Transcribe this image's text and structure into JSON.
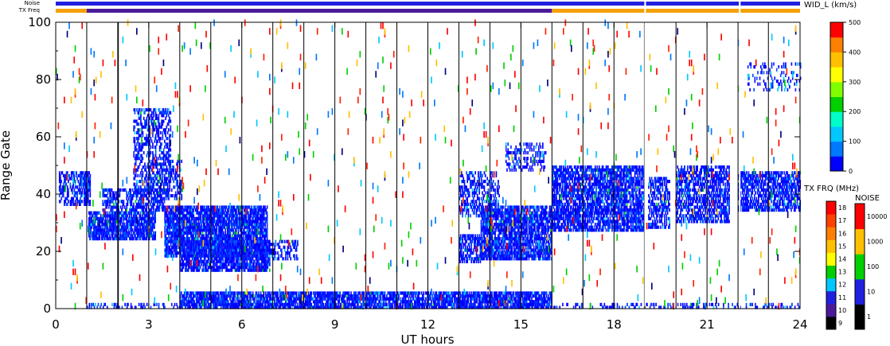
{
  "chart_data": {
    "type": "heatmap",
    "xlabel": "UT hours",
    "ylabel": "Range Gate",
    "xlim": [
      0,
      24
    ],
    "ylim": [
      0,
      100
    ],
    "x_ticks": [
      "0",
      "3",
      "6",
      "9",
      "12",
      "15",
      "18",
      "21",
      "24"
    ],
    "y_ticks": [
      "0",
      "20",
      "40",
      "60",
      "80",
      "100"
    ],
    "x_tick_values": [
      0,
      3,
      6,
      9,
      12,
      15,
      18,
      21,
      24
    ],
    "y_tick_values": [
      0,
      20,
      40,
      60,
      80,
      100
    ],
    "scan_boundaries_hours": [
      1.0,
      2.0,
      2.02,
      3.0,
      4.0,
      5.0,
      6.0,
      7.0,
      8.0,
      9.0,
      10.0,
      11.0,
      12.0,
      13.0,
      14.0,
      15.0,
      16.0,
      17.0,
      18.0,
      18.98,
      20.0,
      21.0,
      22.0,
      22.98
    ],
    "data_gaps_hours": [
      [
        18.98,
        19.03
      ],
      [
        22.03,
        22.08
      ]
    ],
    "top_bars": {
      "noise_label": "Noise",
      "txfreq_label": "TX Freq",
      "noise_segments": [
        [
          0,
          18.98
        ],
        [
          19.03,
          22.03
        ],
        [
          22.08,
          24
        ]
      ],
      "txfreq_segments": [
        {
          "from": 0,
          "to": 1.0,
          "color": "#f5a000"
        },
        {
          "from": 1.0,
          "to": 16.0,
          "color": "#4a1a9a"
        },
        {
          "from": 16.0,
          "to": 18.98,
          "color": "#f5a000"
        },
        {
          "from": 19.03,
          "to": 22.03,
          "color": "#f5a000"
        },
        {
          "from": 22.08,
          "to": 24,
          "color": "#f5a000"
        }
      ]
    },
    "echo_regions": [
      {
        "t": [
          0.1,
          1.0
        ],
        "g": [
          36,
          48
        ],
        "density": 0.55
      },
      {
        "t": [
          0.9,
          1.1
        ],
        "g": [
          36,
          48
        ],
        "density": 0.8
      },
      {
        "t": [
          1.05,
          3.2
        ],
        "g": [
          24,
          34
        ],
        "density": 0.85
      },
      {
        "t": [
          1.5,
          3.5
        ],
        "g": [
          34,
          42
        ],
        "density": 0.6
      },
      {
        "t": [
          2.5,
          3.7
        ],
        "g": [
          40,
          70
        ],
        "density": 0.45
      },
      {
        "t": [
          3.4,
          4.05
        ],
        "g": [
          38,
          52
        ],
        "density": 0.45
      },
      {
        "t": [
          3.5,
          6.8
        ],
        "g": [
          18,
          36
        ],
        "density": 0.85
      },
      {
        "t": [
          4.0,
          6.9
        ],
        "g": [
          13,
          24
        ],
        "density": 0.8
      },
      {
        "t": [
          6.5,
          7.8
        ],
        "g": [
          17,
          24
        ],
        "density": 0.4
      },
      {
        "t": [
          13.0,
          13.7
        ],
        "g": [
          16,
          26
        ],
        "density": 0.7
      },
      {
        "t": [
          13.0,
          14.3
        ],
        "g": [
          32,
          48
        ],
        "density": 0.45
      },
      {
        "t": [
          13.7,
          16.0
        ],
        "g": [
          17,
          36
        ],
        "density": 0.8
      },
      {
        "t": [
          14.5,
          15.8
        ],
        "g": [
          48,
          58
        ],
        "density": 0.35
      },
      {
        "t": [
          16.0,
          18.95
        ],
        "g": [
          27,
          50
        ],
        "density": 0.75
      },
      {
        "t": [
          19.1,
          19.8
        ],
        "g": [
          28,
          46
        ],
        "density": 0.55
      },
      {
        "t": [
          20.0,
          21.7
        ],
        "g": [
          30,
          50
        ],
        "density": 0.6
      },
      {
        "t": [
          22.0,
          24.0
        ],
        "g": [
          34,
          48
        ],
        "density": 0.7
      },
      {
        "t": [
          22.3,
          24.0
        ],
        "g": [
          76,
          86
        ],
        "density": 0.2
      },
      {
        "t": [
          4.0,
          16.0
        ],
        "g": [
          0,
          6
        ],
        "density": 0.8
      },
      {
        "t": [
          1.0,
          24.0
        ],
        "g": [
          0,
          2
        ],
        "density": 0.3
      }
    ],
    "scatter_density": 0.01,
    "colorbar_velocity_width": {
      "title": "WID_L (km/s)",
      "ticks": [
        "0",
        "100",
        "200",
        "300",
        "400",
        "500"
      ],
      "tick_values": [
        0,
        100,
        200,
        300,
        400,
        500
      ],
      "colors": [
        "#0000ff",
        "#0078ff",
        "#00c8ff",
        "#00ffc8",
        "#00d000",
        "#80ff00",
        "#ffff00",
        "#ffc000",
        "#ff8000",
        "#ff0000"
      ]
    },
    "colorbar_txfreq": {
      "title": "TX FRQ (MHz)",
      "ticks": [
        "9",
        "10",
        "11",
        "12",
        "13",
        "14",
        "15",
        "16",
        "17",
        "18"
      ],
      "colors": [
        "#000000",
        "#4a1a9a",
        "#2020e0",
        "#00c8ff",
        "#00d000",
        "#ffff00",
        "#ffc000",
        "#ff8000",
        "#ff4000",
        "#ff0000"
      ]
    },
    "colorbar_noise": {
      "title": "NOISE",
      "ticks": [
        "1",
        "10",
        "100",
        "1000",
        "10000"
      ],
      "colors": [
        "#000000",
        "#2020e0",
        "#00d000",
        "#ffc000",
        "#ff0000"
      ]
    }
  }
}
